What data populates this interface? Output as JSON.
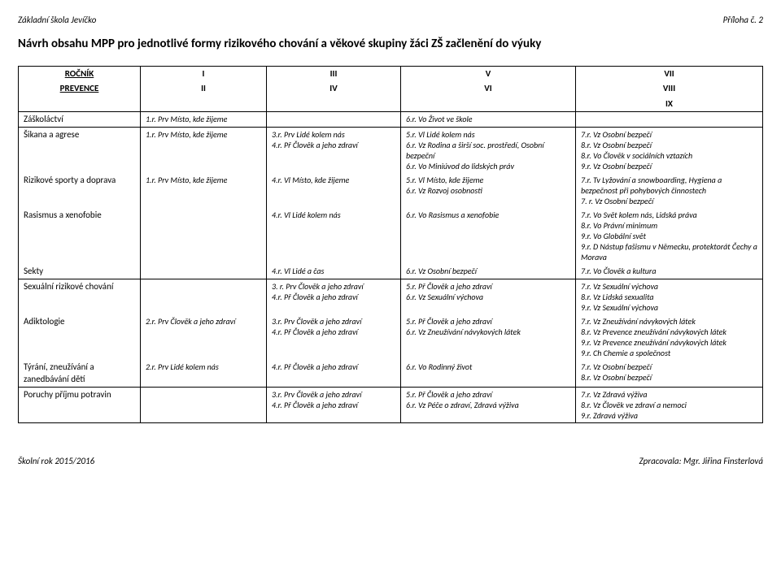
{
  "header": {
    "left": "Základní škola Jevíčko",
    "right": "Příloha č. 2"
  },
  "title": "Návrh obsahu MPP pro jednotlivé formy rizikového chování a věkové skupiny žáci ZŠ začlenění do výuky",
  "thead": {
    "r1": "ROČNÍK",
    "r2": "PREVENCE",
    "c1a": "I",
    "c1b": "II",
    "c2a": "III",
    "c2b": "IV",
    "c3a": "V",
    "c3b": "VI",
    "c4a": "VII",
    "c4b": "VIII",
    "c4c": "IX"
  },
  "rows": {
    "zaskolactvi": {
      "label": "Záškoláctví",
      "c1": [
        "1.r. Prv Místo, kde žijeme"
      ],
      "c2": [],
      "c3": [
        "6.r. Vo Život ve škole"
      ],
      "c4": []
    },
    "sikana": {
      "label": "Šikana a agrese",
      "c1": [
        "1.r. Prv Místo, kde žijeme"
      ],
      "c2": [
        "3.r. Prv Lidé kolem nás",
        "4.r. Př Člověk a jeho zdraví"
      ],
      "c3": [
        "5.r. Vl Lidé kolem nás",
        "6.r. Vz Rodina a širší soc. prostředí, Osobní bezpeční",
        "6.r. Vo Miniúvod do lidských práv"
      ],
      "c4": [
        "7.r. Vz Osobní bezpečí",
        "8.r. Vz Osobní bezpečí",
        "8.r. Vo Člověk v sociálních vztazích",
        "9.r. Vz Osobní bezpečí"
      ]
    },
    "sporty": {
      "label": "Rizikové sporty a doprava",
      "c1": [
        "1.r. Prv Místo, kde žijeme"
      ],
      "c2": [
        "4.r. Vl Místo, kde žijeme"
      ],
      "c3": [
        "5.r. Vl Místo, kde žijeme",
        "6.r. Vz Rozvoj osobnosti"
      ],
      "c4": [
        "7.r. Tv Lyžování a snowboarding, Hygiena a bezpečnost při pohybových činnostech",
        "7. r. Vz Osobní bezpečí"
      ]
    },
    "rasismus": {
      "label": "Rasismus a xenofobie",
      "c1": [],
      "c2": [
        "4.r. Vl Lidé kolem nás"
      ],
      "c3": [
        "6.r. Vo Rasismus a xenofobie"
      ],
      "c4": [
        "7.r. Vo Svět kolem nás, Lidská práva",
        "8.r. Vo Právní minimum",
        "9.r. Vo Globální svět",
        "9.r. D Nástup fašismu v Německu, protektorát Čechy a Morava"
      ]
    },
    "sekty": {
      "label": "Sekty",
      "c1": [],
      "c2": [
        "4.r. Vl Lidé a čas"
      ],
      "c3": [
        "6.r. Vz Osobní bezpečí"
      ],
      "c4": [
        "7.r. Vo Člověk a kultura"
      ]
    },
    "sexualni": {
      "label": "Sexuální rizikové chování",
      "c1": [],
      "c2": [
        "3. r. Prv Člověk a jeho zdraví",
        "4.r. Př Člověk a jeho zdraví"
      ],
      "c3": [
        "5.r. Př Člověk a jeho zdraví",
        "6.r. Vz Sexuální výchova"
      ],
      "c4": [
        "7.r. Vz Sexuální výchova",
        "8.r. Vz Lidská sexualita",
        "9.r. Vz Sexuální výchova"
      ]
    },
    "adiktologie": {
      "label": "Adiktologie",
      "c1": [
        "2.r. Prv Člověk a jeho zdraví"
      ],
      "c2": [
        "3.r. Prv Člověk a jeho zdraví",
        "4.r. Př Člověk a jeho zdraví"
      ],
      "c3": [
        "5.r. Př Člověk a jeho zdraví",
        "6.r. Vz Zneužívání návykových látek"
      ],
      "c4": [
        "7.r. Vz Zneužívání návykových látek",
        "8.r. Vz Prevence zneužívání návykových látek",
        "9.r. Vz Prevence zneužívání návykových látek",
        "9.r. Ch Chemie a společnost"
      ]
    },
    "tyrani": {
      "label": "Týrání, zneužívání a zanedbávání dětí",
      "c1": [
        "2.r. Prv Lidé kolem nás"
      ],
      "c2": [
        "4.r. Př Člověk a jeho zdraví"
      ],
      "c3": [
        "6.r. Vo Rodinný život"
      ],
      "c4": [
        "7.r. Vz Osobní bezpečí",
        "8.r. Vz Osobní bezpečí"
      ]
    },
    "poruchy": {
      "label": "Poruchy příjmu potravin",
      "c1": [],
      "c2": [
        "3.r. Prv Člověk a jeho zdraví",
        "4.r. Př Člověk a jeho zdraví"
      ],
      "c3": [
        "5.r. Př Člověk a jeho zdraví",
        "6.r. Vz Péče o zdraví, Zdravá výživa"
      ],
      "c4": [
        "7.r. Vz Zdravá výživa",
        "8.r. Vz Člověk ve zdraví a nemoci",
        "9.r. Zdravá výživa"
      ]
    }
  },
  "footer": {
    "left": "Školní rok 2015/2016",
    "right": "Zpracovala: Mgr. Jiřina Finsterlová"
  }
}
